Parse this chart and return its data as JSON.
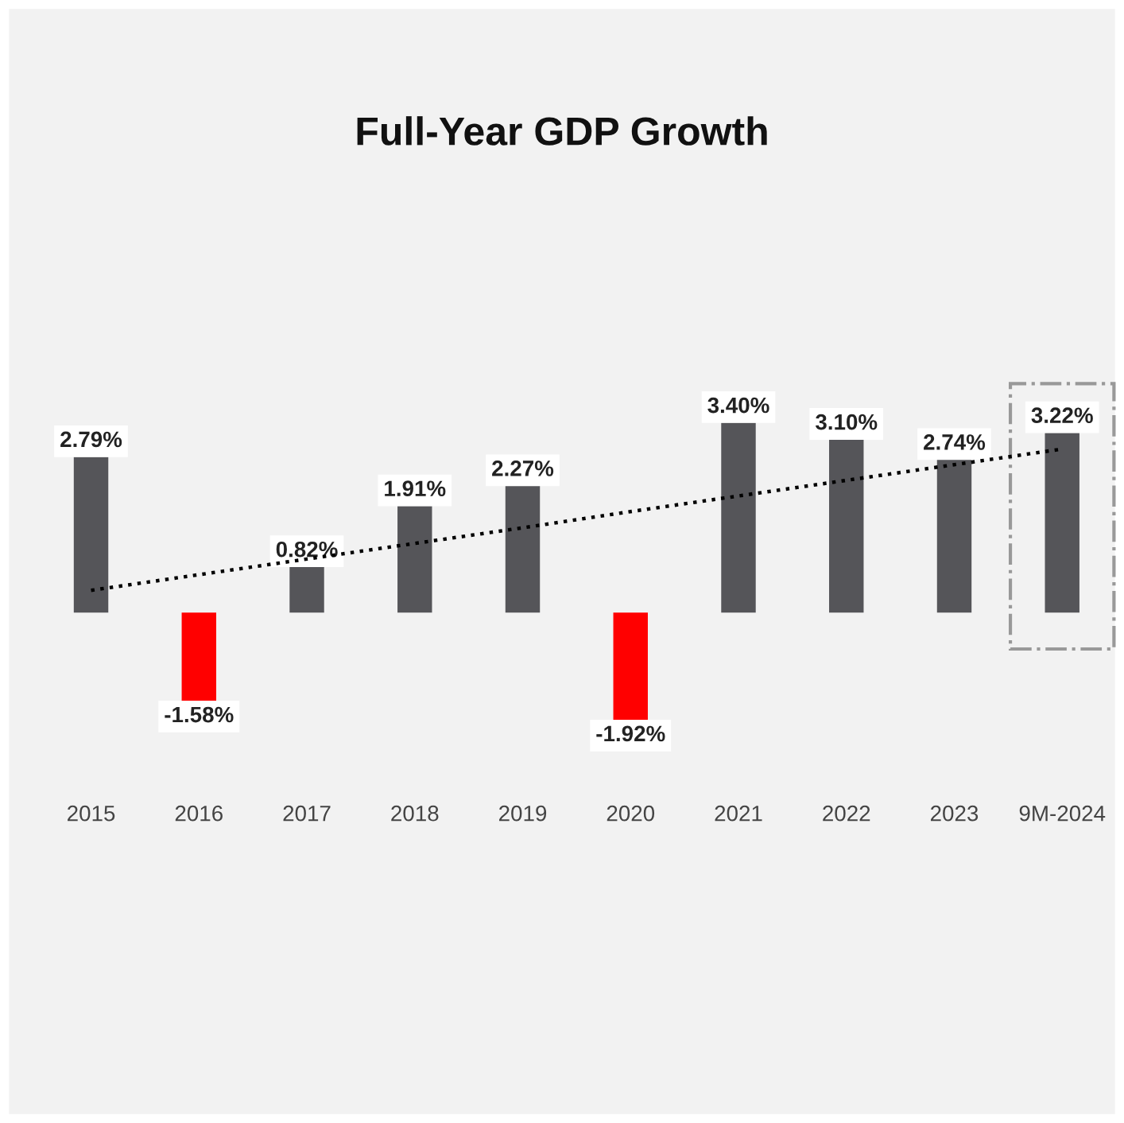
{
  "chart_data": {
    "type": "bar",
    "title": "Full-Year GDP Growth",
    "categories": [
      "2015",
      "2016",
      "2017",
      "2018",
      "2019",
      "2020",
      "2021",
      "2022",
      "2023",
      "9M-2024"
    ],
    "values": [
      2.79,
      -1.58,
      0.82,
      1.91,
      2.27,
      -1.92,
      3.4,
      3.1,
      2.74,
      3.22
    ],
    "colors": [
      "#555559",
      "#ff0000",
      "#555559",
      "#555559",
      "#555559",
      "#ff0000",
      "#555559",
      "#555559",
      "#555559",
      "#555559"
    ],
    "value_labels": [
      "2.79%",
      "-1.58%",
      "0.82%",
      "1.91%",
      "2.27%",
      "-1.92%",
      "3.40%",
      "3.10%",
      "2.74%",
      "3.22%"
    ],
    "series": [
      {
        "type": "line",
        "values": [
          0.4,
          0.68,
          0.96,
          1.24,
          1.52,
          1.81,
          2.09,
          2.37,
          2.65,
          2.93
        ],
        "color": "#000000",
        "line_style": "dotted"
      }
    ],
    "tick_labels": "x",
    "grid": false,
    "legend": false
  }
}
